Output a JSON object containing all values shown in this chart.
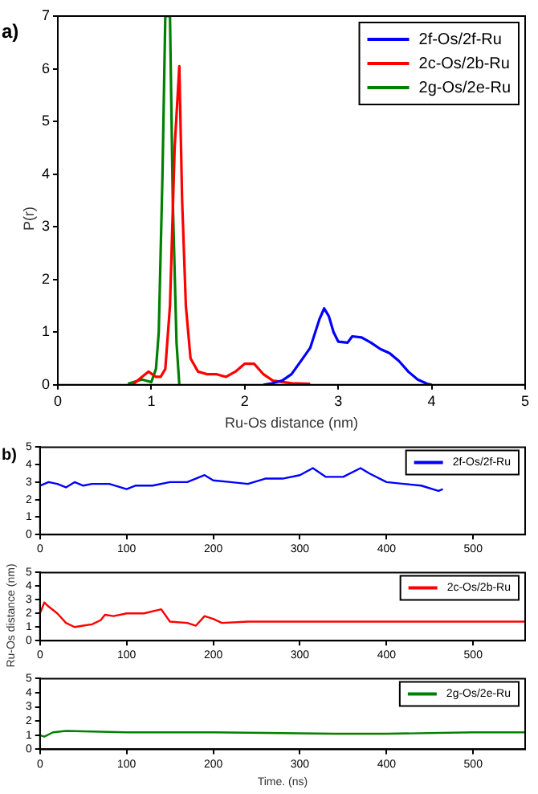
{
  "chart_data": [
    {
      "type": "line",
      "annotations": [
        "a)"
      ],
      "xlabel": "Ru-Os distance (nm)",
      "ylabel": "P(r)",
      "xlim": [
        0,
        5
      ],
      "xticks": [
        0,
        1,
        2,
        3,
        4,
        5
      ],
      "ylim": [
        0,
        7
      ],
      "yticks": [
        0,
        1,
        2,
        3,
        4,
        5,
        6,
        7
      ],
      "grid": false,
      "legend": "top right",
      "marker": "none",
      "line_style": "solid",
      "series": [
        {
          "name": "2f-Os/2f-Ru",
          "color": "#0000ff",
          "x": [
            2.2,
            2.3,
            2.4,
            2.5,
            2.6,
            2.7,
            2.8,
            2.85,
            2.9,
            2.95,
            3.0,
            3.1,
            3.15,
            3.25,
            3.35,
            3.45,
            3.55,
            3.65,
            3.75,
            3.85,
            3.95,
            4.0
          ],
          "values": [
            0,
            0.03,
            0.08,
            0.2,
            0.45,
            0.7,
            1.25,
            1.45,
            1.3,
            1.0,
            0.82,
            0.8,
            0.92,
            0.9,
            0.8,
            0.68,
            0.6,
            0.45,
            0.25,
            0.1,
            0.02,
            0
          ]
        },
        {
          "name": "2c-Os/2b-Ru",
          "color": "#ff0000",
          "x": [
            0.8,
            0.9,
            0.97,
            1.05,
            1.1,
            1.15,
            1.2,
            1.25,
            1.3,
            1.33,
            1.37,
            1.42,
            1.5,
            1.6,
            1.7,
            1.8,
            1.9,
            2.0,
            2.1,
            2.2,
            2.3,
            2.5,
            2.7
          ],
          "values": [
            0,
            0.15,
            0.25,
            0.15,
            0.15,
            0.3,
            1.5,
            4.5,
            6.05,
            3.5,
            1.5,
            0.5,
            0.25,
            0.2,
            0.2,
            0.15,
            0.25,
            0.4,
            0.4,
            0.2,
            0.08,
            0.03,
            0.02
          ]
        },
        {
          "name": "2g-Os/2e-Ru",
          "color": "#008000",
          "x": [
            0.75,
            0.9,
            1.0,
            1.05,
            1.08,
            1.12,
            1.15,
            1.2,
            1.23,
            1.27,
            1.3
          ],
          "values": [
            0.02,
            0.1,
            0.05,
            0.3,
            1,
            4,
            7,
            7,
            3.5,
            0.8,
            0
          ]
        }
      ]
    },
    {
      "type": "line",
      "annotations": [
        "b)"
      ],
      "xlim": [
        0,
        560
      ],
      "xticks": [
        0,
        100,
        200,
        300,
        400,
        500
      ],
      "ylim": [
        0,
        5
      ],
      "yticks": [
        0,
        1,
        2,
        3,
        4,
        5
      ],
      "grid": false,
      "legend": "top right",
      "marker": "none",
      "line_style": "solid",
      "series": [
        {
          "name": "2f-Os/2f-Ru",
          "color": "#0000ff",
          "x": [
            0,
            10,
            20,
            30,
            40,
            50,
            60,
            80,
            100,
            110,
            130,
            150,
            170,
            190,
            200,
            220,
            240,
            260,
            280,
            300,
            315,
            330,
            350,
            370,
            380,
            400,
            420,
            440,
            460,
            465
          ],
          "values": [
            2.8,
            3.0,
            2.9,
            2.7,
            3.0,
            2.8,
            2.9,
            2.9,
            2.6,
            2.8,
            2.8,
            3.0,
            3.0,
            3.4,
            3.1,
            3.0,
            2.9,
            3.2,
            3.2,
            3.4,
            3.8,
            3.3,
            3.3,
            3.8,
            3.5,
            3.0,
            2.9,
            2.8,
            2.5,
            2.6
          ]
        }
      ]
    },
    {
      "type": "line",
      "ylabel": "Ru-Os distance (nm)",
      "xlim": [
        0,
        560
      ],
      "xticks": [
        0,
        100,
        200,
        300,
        400,
        500
      ],
      "ylim": [
        0,
        5
      ],
      "yticks": [
        0,
        1,
        2,
        3,
        4,
        5
      ],
      "grid": false,
      "legend": "top right",
      "marker": "none",
      "line_style": "solid",
      "series": [
        {
          "name": "2c-Os/2b-Ru",
          "color": "#ff0000",
          "x": [
            0,
            5,
            10,
            20,
            30,
            40,
            50,
            60,
            70,
            75,
            85,
            100,
            120,
            140,
            150,
            170,
            180,
            190,
            200,
            210,
            240,
            300,
            400,
            500,
            560
          ],
          "values": [
            2.0,
            2.8,
            2.5,
            2.0,
            1.3,
            1.0,
            1.1,
            1.2,
            1.5,
            1.9,
            1.8,
            2.0,
            2.0,
            2.3,
            1.4,
            1.3,
            1.1,
            1.8,
            1.6,
            1.3,
            1.4,
            1.4,
            1.4,
            1.4,
            1.4
          ]
        }
      ]
    },
    {
      "type": "line",
      "xlabel": "Time. (ns)",
      "xlim": [
        0,
        560
      ],
      "xticks": [
        0,
        100,
        200,
        300,
        400,
        500
      ],
      "ylim": [
        0,
        5
      ],
      "yticks": [
        0,
        1,
        2,
        3,
        4,
        5
      ],
      "grid": false,
      "legend": "top right",
      "marker": "none",
      "line_style": "solid",
      "series": [
        {
          "name": "2g-Os/2e-Ru",
          "color": "#008000",
          "x": [
            0,
            5,
            15,
            30,
            100,
            200,
            340,
            400,
            500,
            560
          ],
          "values": [
            1.0,
            0.9,
            1.2,
            1.3,
            1.2,
            1.2,
            1.1,
            1.1,
            1.2,
            1.2
          ]
        }
      ]
    }
  ]
}
